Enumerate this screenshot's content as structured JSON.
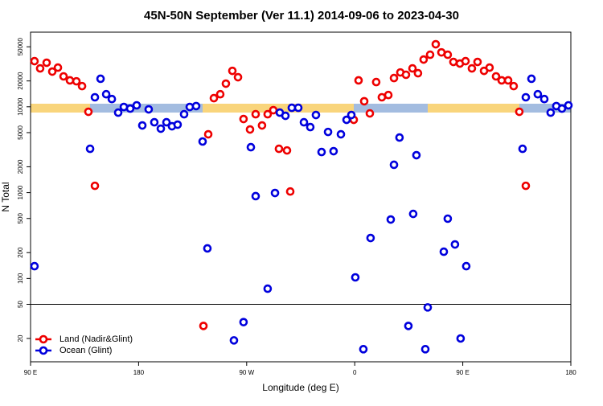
{
  "chart_data": {
    "type": "scatter",
    "title": "45N-50N September (Ver 11.1)   2014-09-06 to 2023-04-30",
    "xlabel": "Longitude (deg E)",
    "ylabel": "N Total",
    "xlim": [
      90,
      540
    ],
    "xticks": [
      {
        "value": 90,
        "label": "90 E"
      },
      180,
      {
        "value": 270,
        "label": "90 W"
      },
      {
        "value": 360,
        "label": "0"
      },
      {
        "value": 450,
        "label": "90 E"
      },
      {
        "value": 540,
        "label": "180"
      }
    ],
    "ylim": [
      10.7,
      74000
    ],
    "log_y": true,
    "yticks": [
      20,
      50,
      100,
      200,
      500,
      1000,
      2000,
      5000,
      10000,
      20000,
      50000
    ],
    "hlines": [
      50
    ],
    "legend": "lower left",
    "series": [
      {
        "name": "Land (Nadir&Glint)",
        "color": "#ee0000",
        "x": [
          93.3,
          98.0,
          103.4,
          108.1,
          112.8,
          117.5,
          122.8,
          128.2,
          132.9,
          138.2,
          143.6,
          234.0,
          238.0,
          242.7,
          248.0,
          252.7,
          258.1,
          262.8,
          267.4,
          272.8,
          277.5,
          282.8,
          287.5,
          292.2,
          296.9,
          303.6,
          306.3,
          359.2,
          363.2,
          367.9,
          372.6,
          377.9,
          382.6,
          388.0,
          392.7,
          398.0,
          402.7,
          408.1,
          412.7,
          417.4,
          422.8,
          427.5,
          432.2,
          437.5,
          442.2,
          447.6,
          452.3,
          457.6,
          462.3,
          467.7,
          472.3,
          477.7,
          482.4,
          487.8,
          492.4,
          497.1,
          502.5
        ],
        "values": [
          34000,
          28000,
          32600,
          25700,
          28600,
          22600,
          20300,
          19800,
          17400,
          8740,
          1200,
          28,
          4780,
          12600,
          14000,
          18600,
          26200,
          22100,
          7200,
          5440,
          8190,
          6060,
          8190,
          9130,
          3240,
          3100,
          1030,
          7050,
          20300,
          11600,
          8370,
          19400,
          12900,
          13700,
          21600,
          25100,
          23600,
          28000,
          24600,
          35500,
          40400,
          53500,
          43000,
          40400,
          33300,
          31900,
          34000,
          28000,
          33300,
          26200,
          28600,
          22600,
          20300,
          20300,
          17400,
          8740,
          1200
        ]
      },
      {
        "name": "Ocean (Glint)",
        "color": "#0000dd",
        "x": [
          93.3,
          139.6,
          143.6,
          148.3,
          153.0,
          157.7,
          163.0,
          167.7,
          173.0,
          178.4,
          183.1,
          188.4,
          193.1,
          198.5,
          203.2,
          207.8,
          212.5,
          217.9,
          222.6,
          227.9,
          233.3,
          237.3,
          259.4,
          267.4,
          273.5,
          277.5,
          287.5,
          293.6,
          297.6,
          302.3,
          307.6,
          313.0,
          317.7,
          323.0,
          327.7,
          332.4,
          337.8,
          342.4,
          348.5,
          353.2,
          357.2,
          360.5,
          367.2,
          373.2,
          390.0,
          392.7,
          397.3,
          404.7,
          408.7,
          411.4,
          418.8,
          420.8,
          434.2,
          437.5,
          443.5,
          448.2,
          452.9,
          499.8,
          502.5,
          507.2,
          512.5,
          517.9,
          523.2,
          527.9,
          532.6,
          538.0
        ],
        "values": [
          139,
          3240,
          12900,
          21200,
          14000,
          12300,
          8550,
          9950,
          9520,
          10400,
          6060,
          9330,
          6600,
          5560,
          6600,
          5930,
          6190,
          8190,
          9950,
          10200,
          3940,
          224,
          19,
          31,
          3380,
          910,
          76,
          990,
          8550,
          7850,
          9730,
          9730,
          6600,
          5800,
          8020,
          2970,
          5090,
          3040,
          4780,
          7050,
          8020,
          103,
          15,
          296,
          486,
          2110,
          4380,
          28,
          565,
          2730,
          15,
          46,
          205,
          497,
          249,
          20,
          139,
          3240,
          12900,
          21200,
          14000,
          12300,
          8550,
          10200,
          9520,
          10400
        ]
      }
    ]
  }
}
